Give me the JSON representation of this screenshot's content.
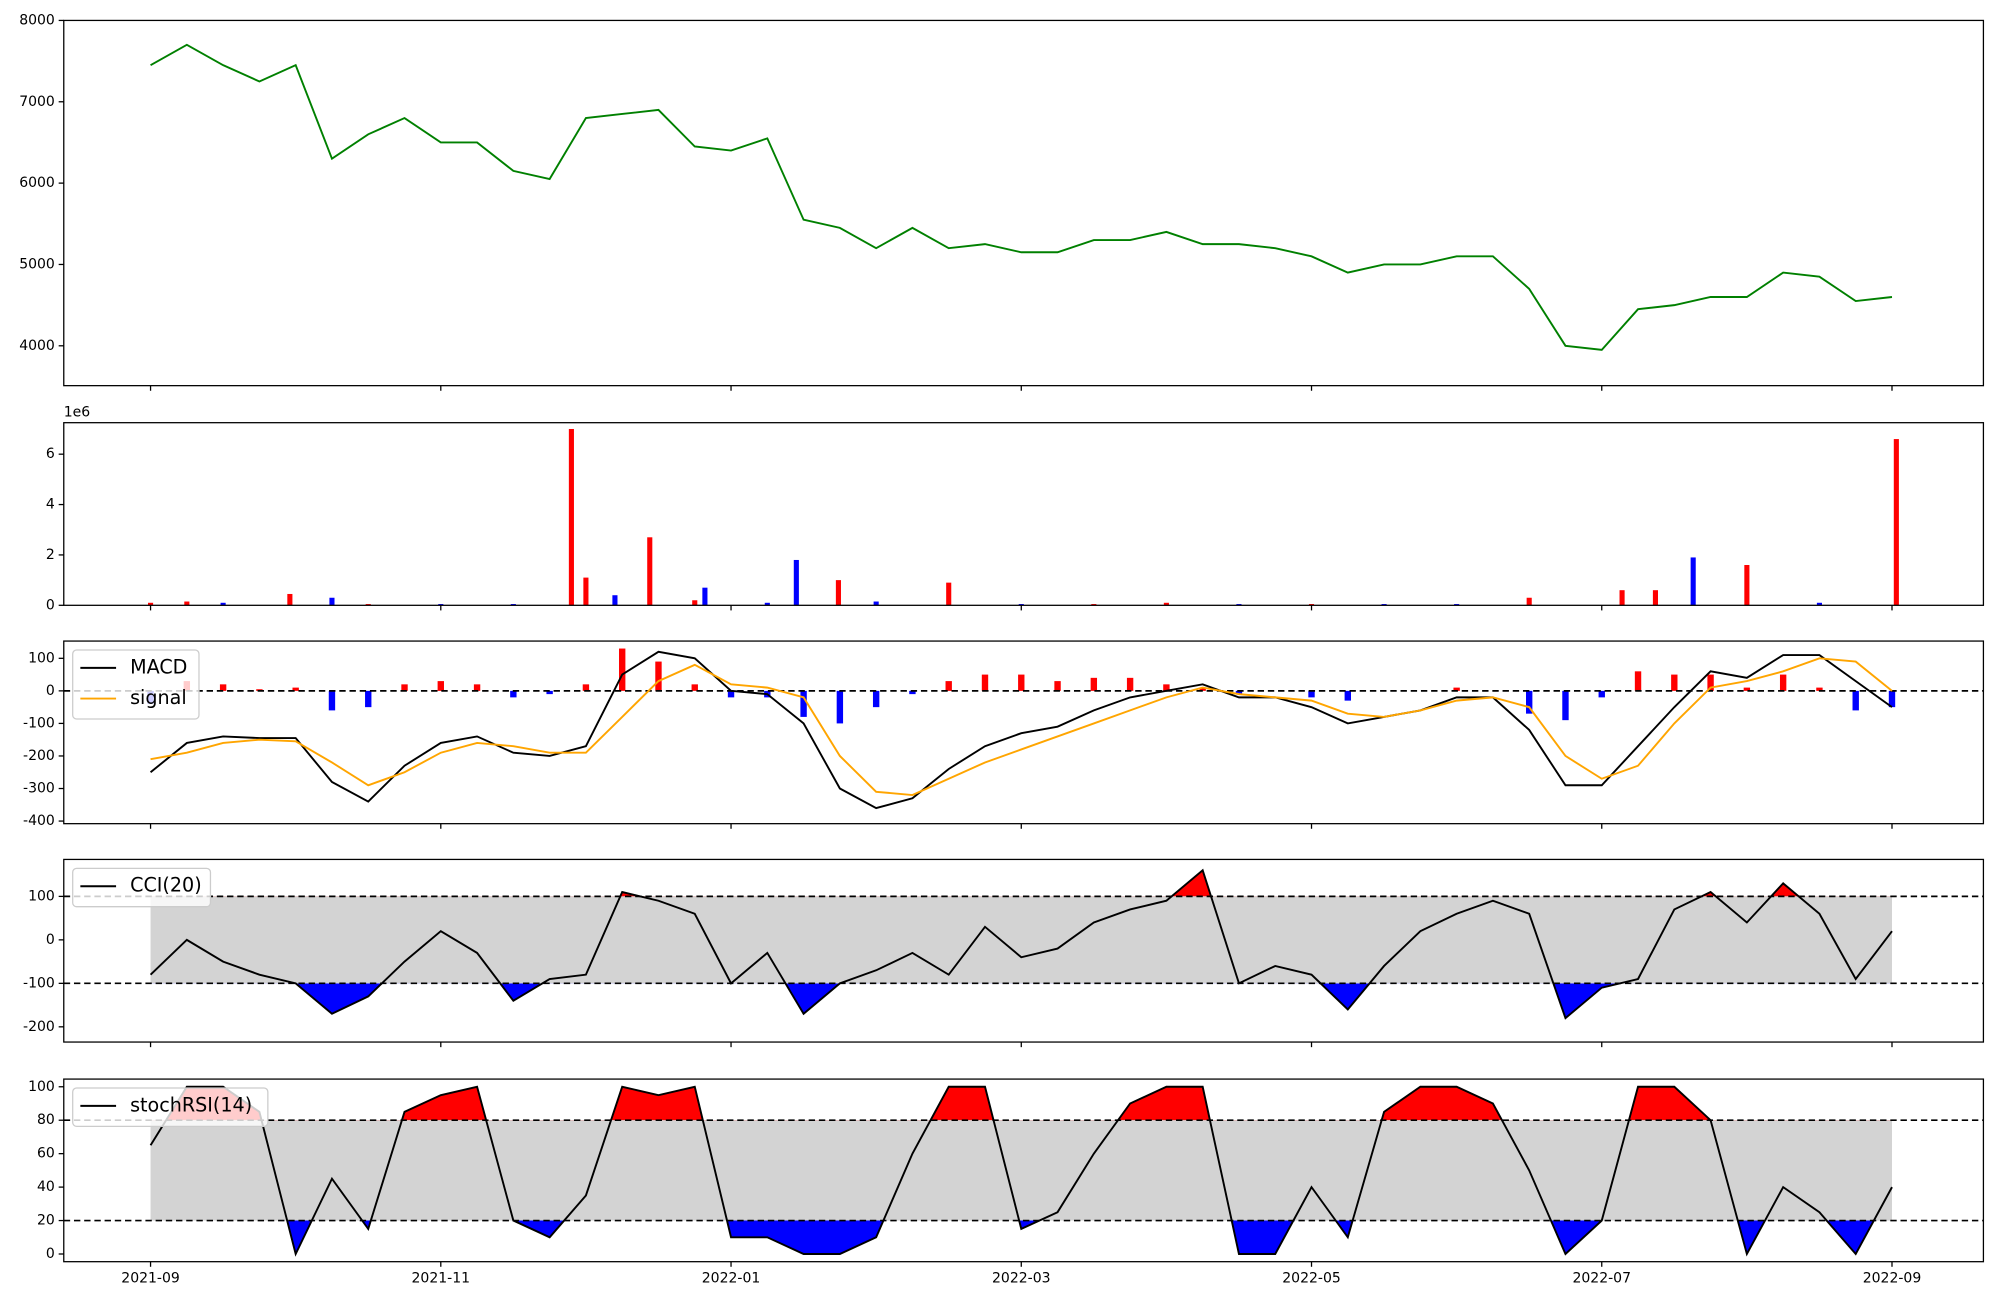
{
  "chart_data": [
    {
      "type": "line",
      "xlim": [
        -0.598,
        12.63
      ],
      "ylim": [
        3510,
        8000
      ],
      "yticks": [
        4000,
        5000,
        6000,
        7000,
        8000
      ],
      "x": [
        0,
        0.25,
        0.5,
        0.75,
        1,
        1.25,
        1.5,
        1.75,
        2,
        2.25,
        2.5,
        2.75,
        3,
        3.25,
        3.5,
        3.75,
        4,
        4.25,
        4.5,
        4.75,
        5,
        5.25,
        5.5,
        5.75,
        6,
        6.25,
        6.5,
        6.75,
        7,
        7.25,
        7.5,
        7.75,
        8,
        8.25,
        8.5,
        8.75,
        9,
        9.25,
        9.5,
        9.75,
        10,
        10.25,
        10.5,
        10.75,
        11,
        11.25,
        11.5,
        11.75,
        12
      ],
      "series": [
        {
          "color": "green",
          "values": [
            7450,
            7700,
            7450,
            7250,
            7450,
            6300,
            6600,
            6800,
            6500,
            6500,
            6150,
            6050,
            6800,
            6850,
            6900,
            6450,
            6400,
            6550,
            5550,
            5450,
            5200,
            5450,
            5200,
            5250,
            5150,
            5150,
            5300,
            5300,
            5400,
            5250,
            5250,
            5200,
            5100,
            4900,
            5000,
            5000,
            5100,
            5100,
            4700,
            4000,
            3950,
            4450,
            4500,
            4600,
            4600,
            4900,
            4850,
            4550,
            4600
          ]
        }
      ]
    },
    {
      "type": "bar",
      "offset_label": "1e6",
      "xlim": [
        -0.598,
        12.63
      ],
      "ylim": [
        0,
        7.25
      ],
      "yticks": [
        0,
        2,
        4,
        6
      ],
      "x": [
        0,
        0.25,
        0.5,
        0.96,
        1.25,
        1.5,
        2,
        2.5,
        2.9,
        3.0,
        3.2,
        3.44,
        3.75,
        3.82,
        4.25,
        4.45,
        4.74,
        5,
        5.5,
        6,
        6.5,
        7,
        7.5,
        8,
        8.5,
        9,
        9.5,
        10.14,
        10.37,
        10.63,
        11.0,
        11.5,
        12.03
      ],
      "values": [
        0.1,
        0.15,
        0.1,
        0.45,
        0.3,
        0.05,
        0.05,
        0.05,
        7.0,
        1.1,
        0.4,
        2.7,
        0.2,
        0.7,
        0.1,
        1.8,
        1.0,
        0.15,
        0.9,
        0.05,
        0.05,
        0.1,
        0.05,
        0.05,
        0.05,
        0.05,
        0.3,
        0.6,
        0.6,
        1.9,
        1.6,
        0.1,
        6.6
      ],
      "colors": [
        "red",
        "red",
        "blue",
        "red",
        "blue",
        "red",
        "blue",
        "blue",
        "red",
        "red",
        "blue",
        "red",
        "red",
        "blue",
        "blue",
        "blue",
        "red",
        "blue",
        "red",
        "blue",
        "red",
        "red",
        "blue",
        "red",
        "blue",
        "blue",
        "red",
        "red",
        "red",
        "blue",
        "red",
        "blue",
        "red"
      ]
    },
    {
      "type": "line",
      "xlim": [
        -0.598,
        12.63
      ],
      "ylim": [
        -408,
        153
      ],
      "yticks": [
        -400,
        -300,
        -200,
        -100,
        0,
        100
      ],
      "zero_line": 0,
      "x": [
        0,
        0.25,
        0.5,
        0.75,
        1,
        1.25,
        1.5,
        1.75,
        2,
        2.25,
        2.5,
        2.75,
        3,
        3.25,
        3.5,
        3.75,
        4,
        4.25,
        4.5,
        4.75,
        5,
        5.25,
        5.5,
        5.75,
        6,
        6.25,
        6.5,
        6.75,
        7,
        7.25,
        7.5,
        7.75,
        8,
        8.25,
        8.5,
        8.75,
        9,
        9.25,
        9.5,
        9.75,
        10,
        10.25,
        10.5,
        10.75,
        11,
        11.25,
        11.5,
        11.75,
        12
      ],
      "series": [
        {
          "name": "MACD",
          "color": "black",
          "values": [
            -250,
            -160,
            -140,
            -145,
            -145,
            -280,
            -340,
            -230,
            -160,
            -140,
            -190,
            -200,
            -170,
            50,
            120,
            100,
            0,
            -10,
            -100,
            -300,
            -360,
            -330,
            -240,
            -170,
            -130,
            -110,
            -60,
            -20,
            0,
            20,
            -20,
            -20,
            -50,
            -100,
            -80,
            -60,
            -20,
            -20,
            -120,
            -290,
            -290,
            -170,
            -50,
            60,
            40,
            110,
            110,
            30,
            -50
          ]
        },
        {
          "name": "signal",
          "color": "orange",
          "values": [
            -210,
            -190,
            -160,
            -150,
            -155,
            -220,
            -290,
            -250,
            -190,
            -160,
            -170,
            -190,
            -190,
            -80,
            30,
            80,
            20,
            10,
            -20,
            -200,
            -310,
            -320,
            -270,
            -220,
            -180,
            -140,
            -100,
            -60,
            -20,
            10,
            -10,
            -20,
            -30,
            -70,
            -80,
            -60,
            -30,
            -20,
            -50,
            -200,
            -270,
            -230,
            -100,
            10,
            30,
            60,
            100,
            90,
            0
          ]
        }
      ],
      "histogram": {
        "positive_color": "red",
        "negative_color": "blue",
        "values": [
          -40,
          30,
          20,
          5,
          10,
          -60,
          -50,
          20,
          30,
          20,
          -20,
          -10,
          20,
          130,
          90,
          20,
          -20,
          -20,
          -80,
          -100,
          -50,
          -10,
          30,
          50,
          50,
          30,
          40,
          40,
          20,
          10,
          -10,
          0,
          -20,
          -30,
          0,
          0,
          10,
          0,
          -70,
          -90,
          -20,
          60,
          50,
          50,
          10,
          50,
          10,
          -60,
          -50
        ]
      }
    },
    {
      "type": "line",
      "xlim": [
        -0.598,
        12.63
      ],
      "ylim": [
        -235,
        185
      ],
      "yticks": [
        -200,
        -100,
        0,
        100
      ],
      "levels": [
        -100,
        100
      ],
      "band_color": "lightgray",
      "above_color": "red",
      "below_color": "blue",
      "x": [
        0,
        0.25,
        0.5,
        0.75,
        1,
        1.25,
        1.5,
        1.75,
        2,
        2.25,
        2.5,
        2.75,
        3,
        3.25,
        3.5,
        3.75,
        4,
        4.25,
        4.5,
        4.75,
        5,
        5.25,
        5.5,
        5.75,
        6,
        6.25,
        6.5,
        6.75,
        7,
        7.25,
        7.5,
        7.75,
        8,
        8.25,
        8.5,
        8.75,
        9,
        9.25,
        9.5,
        9.75,
        10,
        10.25,
        10.5,
        10.75,
        11,
        11.25,
        11.5,
        11.75,
        12
      ],
      "series": [
        {
          "name": "CCI(20)",
          "color": "black",
          "values": [
            -80,
            0,
            -50,
            -80,
            -100,
            -170,
            -130,
            -50,
            20,
            -30,
            -140,
            -90,
            -80,
            110,
            90,
            60,
            -100,
            -30,
            -170,
            -100,
            -70,
            -30,
            -80,
            30,
            -40,
            -20,
            40,
            70,
            90,
            160,
            -100,
            -60,
            -80,
            -160,
            -60,
            20,
            60,
            90,
            60,
            -180,
            -110,
            -90,
            70,
            110,
            40,
            130,
            60,
            -90,
            20
          ]
        }
      ]
    },
    {
      "type": "line",
      "xlim": [
        -0.598,
        12.63
      ],
      "ylim": [
        -4.6,
        104.6
      ],
      "yticks": [
        0,
        20,
        40,
        60,
        80,
        100
      ],
      "levels": [
        20,
        80
      ],
      "band_color": "lightgray",
      "above_color": "red",
      "below_color": "blue",
      "xticks": [
        {
          "value": 0,
          "label": "2021-09"
        },
        {
          "value": 2,
          "label": "2021-11"
        },
        {
          "value": 4,
          "label": "2022-01"
        },
        {
          "value": 6,
          "label": "2022-03"
        },
        {
          "value": 8,
          "label": "2022-05"
        },
        {
          "value": 10,
          "label": "2022-07"
        },
        {
          "value": 12,
          "label": "2022-09"
        }
      ],
      "x": [
        0,
        0.25,
        0.5,
        0.75,
        1,
        1.25,
        1.5,
        1.75,
        2,
        2.25,
        2.5,
        2.75,
        3,
        3.25,
        3.5,
        3.75,
        4,
        4.25,
        4.5,
        4.75,
        5,
        5.25,
        5.5,
        5.75,
        6,
        6.25,
        6.5,
        6.75,
        7,
        7.25,
        7.5,
        7.75,
        8,
        8.25,
        8.5,
        8.75,
        9,
        9.25,
        9.5,
        9.75,
        10,
        10.25,
        10.5,
        10.75,
        11,
        11.25,
        11.5,
        11.75,
        12
      ],
      "series": [
        {
          "name": "stochRSI(14)",
          "color": "black",
          "values": [
            65,
            100,
            100,
            85,
            0,
            45,
            15,
            85,
            95,
            100,
            20,
            10,
            35,
            100,
            95,
            100,
            10,
            10,
            0,
            0,
            10,
            60,
            100,
            100,
            15,
            25,
            60,
            90,
            100,
            100,
            0,
            0,
            40,
            10,
            85,
            100,
            100,
            90,
            50,
            0,
            20,
            100,
            100,
            80,
            0,
            40,
            25,
            0,
            40
          ]
        }
      ]
    }
  ]
}
